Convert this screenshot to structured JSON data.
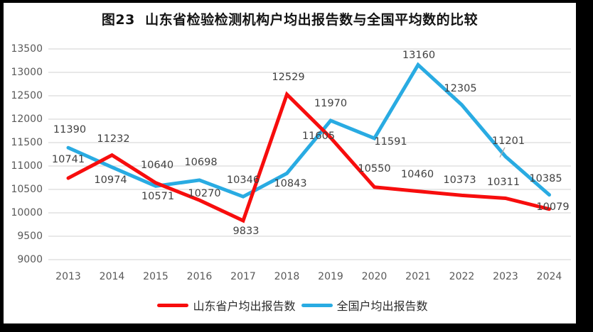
{
  "title": "图23  山东省检验检测机构户均出报告数与全国平均数的比较",
  "colors": {
    "shandong_line": "#F70D0D",
    "national_line": "#29ABE2",
    "gridline": "#D9D9D9",
    "axis_text": "#595959",
    "data_label_text": "#404040",
    "leader_line": "#A6A6A6",
    "frame": "#000000",
    "background": "#FFFFFF"
  },
  "chart_data": {
    "type": "line",
    "title": "图23  山东省检验检测机构户均出报告数与全国平均数的比较",
    "categories": [
      "2013",
      "2014",
      "2015",
      "2016",
      "2017",
      "2018",
      "2019",
      "2020",
      "2021",
      "2022",
      "2023",
      "2024"
    ],
    "series": [
      {
        "name": "山东省户均出报告数",
        "color": "#F70D0D",
        "values": [
          10741,
          11232,
          10640,
          10270,
          9833,
          12529,
          11605,
          10550,
          10460,
          10373,
          10311,
          10079
        ],
        "label_offsets": [
          [
            0,
            -26
          ],
          [
            2,
            -23
          ],
          [
            2,
            -25
          ],
          [
            7,
            -9
          ],
          [
            4,
            15
          ],
          [
            2,
            -24
          ],
          [
            -17,
            -2
          ],
          [
            0,
            -26
          ],
          [
            -1,
            -24
          ],
          [
            -3,
            -21
          ],
          [
            -3,
            -22
          ],
          [
            5,
            -3
          ]
        ]
      },
      {
        "name": "全国户均出报告数",
        "color": "#29ABE2",
        "values": [
          11390,
          10974,
          10571,
          10698,
          10346,
          10843,
          11970,
          11591,
          13160,
          12305,
          11201,
          10385
        ],
        "label_offsets": [
          [
            2,
            -25
          ],
          [
            -2,
            18
          ],
          [
            3,
            15
          ],
          [
            2,
            -25
          ],
          [
            0,
            -23
          ],
          [
            5,
            15
          ],
          [
            0,
            -24
          ],
          [
            23,
            5
          ],
          [
            1,
            -13
          ],
          [
            -2,
            -23
          ],
          [
            4,
            -22
          ],
          [
            -5,
            -23
          ]
        ]
      }
    ],
    "xlabel": "",
    "ylabel": "",
    "ylim": [
      9000,
      13500
    ],
    "y_tick_step": 500,
    "y_tick_labels": [
      "9000",
      "9500",
      "10000",
      "10500",
      "11000",
      "11500",
      "12000",
      "12500",
      "13000",
      "13500"
    ],
    "grid": true,
    "data_labels": true,
    "legend_position": "bottom",
    "annotations": {
      "leader_line_at": {
        "series": 1,
        "index": 10
      }
    }
  }
}
